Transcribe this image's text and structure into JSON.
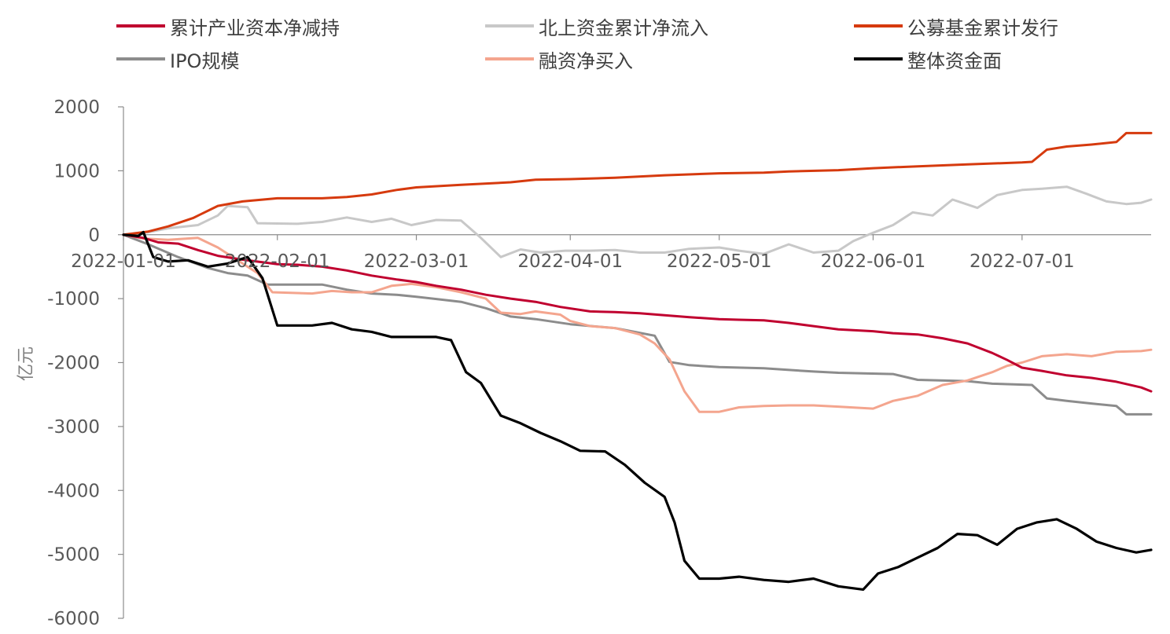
{
  "chart_data": {
    "type": "line",
    "ylabel": "亿元",
    "ylim": [
      -6000,
      2000
    ],
    "yticks": [
      2000,
      1000,
      0,
      -1000,
      -2000,
      -3000,
      -4000,
      -5000,
      -6000
    ],
    "ytick_labels": [
      "2000",
      "1000",
      "0",
      "-1000",
      "-2000",
      "-3000",
      "-4000",
      "-5000",
      "-6000"
    ],
    "x_range": [
      "2022-01-01",
      "2022-07-27"
    ],
    "xticks": [
      "2022-01-01",
      "2022-02-01",
      "2022-03-01",
      "2022-04-01",
      "2022-05-01",
      "2022-06-01",
      "2022-07-01"
    ],
    "xtick_labels": [
      "2022-01-01",
      "2022-02-01",
      "2022-03-01",
      "2022-04-01",
      "2022-05-01",
      "2022-06-01",
      "2022-07-01"
    ],
    "grid": false,
    "legend_position": "top",
    "series": [
      {
        "name": "累计产业资本净减持",
        "color": "#C0002F",
        "points": [
          [
            "2022-01-01",
            0
          ],
          [
            "2022-01-05",
            -50
          ],
          [
            "2022-01-08",
            -120
          ],
          [
            "2022-01-12",
            -140
          ],
          [
            "2022-01-16",
            -240
          ],
          [
            "2022-01-20",
            -330
          ],
          [
            "2022-01-25",
            -390
          ],
          [
            "2022-02-01",
            -460
          ],
          [
            "2022-02-05",
            -470
          ],
          [
            "2022-02-10",
            -500
          ],
          [
            "2022-02-15",
            -560
          ],
          [
            "2022-02-20",
            -640
          ],
          [
            "2022-02-25",
            -700
          ],
          [
            "2022-03-01",
            -740
          ],
          [
            "2022-03-05",
            -800
          ],
          [
            "2022-03-10",
            -860
          ],
          [
            "2022-03-15",
            -940
          ],
          [
            "2022-03-20",
            -1000
          ],
          [
            "2022-03-25",
            -1050
          ],
          [
            "2022-03-30",
            -1130
          ],
          [
            "2022-04-05",
            -1200
          ],
          [
            "2022-04-10",
            -1210
          ],
          [
            "2022-04-15",
            -1230
          ],
          [
            "2022-04-20",
            -1260
          ],
          [
            "2022-04-25",
            -1290
          ],
          [
            "2022-05-01",
            -1320
          ],
          [
            "2022-05-05",
            -1330
          ],
          [
            "2022-05-10",
            -1340
          ],
          [
            "2022-05-15",
            -1380
          ],
          [
            "2022-05-20",
            -1430
          ],
          [
            "2022-05-25",
            -1480
          ],
          [
            "2022-06-01",
            -1510
          ],
          [
            "2022-06-05",
            -1540
          ],
          [
            "2022-06-10",
            -1560
          ],
          [
            "2022-06-15",
            -1620
          ],
          [
            "2022-06-20",
            -1700
          ],
          [
            "2022-06-25",
            -1850
          ],
          [
            "2022-06-28",
            -1960
          ],
          [
            "2022-07-01",
            -2080
          ],
          [
            "2022-07-05",
            -2130
          ],
          [
            "2022-07-10",
            -2200
          ],
          [
            "2022-07-15",
            -2240
          ],
          [
            "2022-07-20",
            -2300
          ],
          [
            "2022-07-25",
            -2390
          ],
          [
            "2022-07-27",
            -2450
          ]
        ]
      },
      {
        "name": "北上资金累计净流入",
        "color": "#C8C8C8",
        "points": [
          [
            "2022-01-01",
            0
          ],
          [
            "2022-01-06",
            40
          ],
          [
            "2022-01-10",
            100
          ],
          [
            "2022-01-16",
            150
          ],
          [
            "2022-01-20",
            300
          ],
          [
            "2022-01-22",
            450
          ],
          [
            "2022-01-26",
            430
          ],
          [
            "2022-01-28",
            180
          ],
          [
            "2022-02-05",
            170
          ],
          [
            "2022-02-10",
            200
          ],
          [
            "2022-02-15",
            270
          ],
          [
            "2022-02-20",
            200
          ],
          [
            "2022-02-24",
            250
          ],
          [
            "2022-02-28",
            150
          ],
          [
            "2022-03-05",
            230
          ],
          [
            "2022-03-10",
            220
          ],
          [
            "2022-03-14",
            -50
          ],
          [
            "2022-03-18",
            -350
          ],
          [
            "2022-03-22",
            -230
          ],
          [
            "2022-03-26",
            -280
          ],
          [
            "2022-03-31",
            -250
          ],
          [
            "2022-04-05",
            -250
          ],
          [
            "2022-04-10",
            -240
          ],
          [
            "2022-04-15",
            -280
          ],
          [
            "2022-04-20",
            -280
          ],
          [
            "2022-04-25",
            -220
          ],
          [
            "2022-05-01",
            -200
          ],
          [
            "2022-05-05",
            -250
          ],
          [
            "2022-05-10",
            -300
          ],
          [
            "2022-05-15",
            -150
          ],
          [
            "2022-05-20",
            -280
          ],
          [
            "2022-05-25",
            -250
          ],
          [
            "2022-05-28",
            -100
          ],
          [
            "2022-06-01",
            30
          ],
          [
            "2022-06-05",
            150
          ],
          [
            "2022-06-09",
            350
          ],
          [
            "2022-06-13",
            300
          ],
          [
            "2022-06-17",
            550
          ],
          [
            "2022-06-22",
            420
          ],
          [
            "2022-06-26",
            620
          ],
          [
            "2022-07-01",
            700
          ],
          [
            "2022-07-05",
            720
          ],
          [
            "2022-07-10",
            750
          ],
          [
            "2022-07-14",
            640
          ],
          [
            "2022-07-18",
            520
          ],
          [
            "2022-07-22",
            480
          ],
          [
            "2022-07-25",
            500
          ],
          [
            "2022-07-27",
            550
          ]
        ]
      },
      {
        "name": "公募基金累计发行",
        "color": "#D63A0E",
        "points": [
          [
            "2022-01-01",
            0
          ],
          [
            "2022-01-06",
            50
          ],
          [
            "2022-01-10",
            130
          ],
          [
            "2022-01-15",
            260
          ],
          [
            "2022-01-20",
            450
          ],
          [
            "2022-01-25",
            520
          ],
          [
            "2022-02-01",
            570
          ],
          [
            "2022-02-10",
            570
          ],
          [
            "2022-02-15",
            590
          ],
          [
            "2022-02-20",
            630
          ],
          [
            "2022-02-25",
            700
          ],
          [
            "2022-03-01",
            740
          ],
          [
            "2022-03-10",
            780
          ],
          [
            "2022-03-20",
            820
          ],
          [
            "2022-03-25",
            860
          ],
          [
            "2022-04-01",
            870
          ],
          [
            "2022-04-10",
            890
          ],
          [
            "2022-04-20",
            930
          ],
          [
            "2022-05-01",
            960
          ],
          [
            "2022-05-10",
            970
          ],
          [
            "2022-05-15",
            990
          ],
          [
            "2022-05-25",
            1010
          ],
          [
            "2022-06-01",
            1040
          ],
          [
            "2022-06-10",
            1070
          ],
          [
            "2022-06-20",
            1100
          ],
          [
            "2022-07-01",
            1130
          ],
          [
            "2022-07-03",
            1140
          ],
          [
            "2022-07-06",
            1330
          ],
          [
            "2022-07-10",
            1380
          ],
          [
            "2022-07-15",
            1410
          ],
          [
            "2022-07-20",
            1450
          ],
          [
            "2022-07-22",
            1590
          ],
          [
            "2022-07-27",
            1590
          ]
        ]
      },
      {
        "name": "IPO规模",
        "color": "#8C8C8C",
        "points": [
          [
            "2022-01-01",
            0
          ],
          [
            "2022-01-06",
            -150
          ],
          [
            "2022-01-12",
            -350
          ],
          [
            "2022-01-18",
            -520
          ],
          [
            "2022-01-22",
            -600
          ],
          [
            "2022-01-26",
            -640
          ],
          [
            "2022-01-30",
            -780
          ],
          [
            "2022-02-10",
            -780
          ],
          [
            "2022-02-15",
            -860
          ],
          [
            "2022-02-20",
            -920
          ],
          [
            "2022-02-25",
            -940
          ],
          [
            "2022-03-01",
            -970
          ],
          [
            "2022-03-10",
            -1050
          ],
          [
            "2022-03-15",
            -1150
          ],
          [
            "2022-03-20",
            -1280
          ],
          [
            "2022-03-25",
            -1320
          ],
          [
            "2022-04-01",
            -1400
          ],
          [
            "2022-04-10",
            -1460
          ],
          [
            "2022-04-18",
            -1580
          ],
          [
            "2022-04-21",
            -1990
          ],
          [
            "2022-04-25",
            -2040
          ],
          [
            "2022-05-01",
            -2070
          ],
          [
            "2022-05-10",
            -2090
          ],
          [
            "2022-05-20",
            -2140
          ],
          [
            "2022-05-25",
            -2160
          ],
          [
            "2022-06-05",
            -2180
          ],
          [
            "2022-06-10",
            -2270
          ],
          [
            "2022-06-20",
            -2290
          ],
          [
            "2022-06-25",
            -2330
          ],
          [
            "2022-07-03",
            -2350
          ],
          [
            "2022-07-06",
            -2560
          ],
          [
            "2022-07-10",
            -2600
          ],
          [
            "2022-07-15",
            -2640
          ],
          [
            "2022-07-20",
            -2680
          ],
          [
            "2022-07-22",
            -2810
          ],
          [
            "2022-07-27",
            -2810
          ]
        ]
      },
      {
        "name": "融资净买入",
        "color": "#F4A58E",
        "points": [
          [
            "2022-01-01",
            0
          ],
          [
            "2022-01-05",
            -60
          ],
          [
            "2022-01-10",
            -80
          ],
          [
            "2022-01-16",
            -50
          ],
          [
            "2022-01-20",
            -200
          ],
          [
            "2022-01-24",
            -400
          ],
          [
            "2022-01-28",
            -600
          ],
          [
            "2022-01-31",
            -900
          ],
          [
            "2022-02-08",
            -920
          ],
          [
            "2022-02-12",
            -880
          ],
          [
            "2022-02-16",
            -900
          ],
          [
            "2022-02-20",
            -900
          ],
          [
            "2022-02-24",
            -800
          ],
          [
            "2022-02-28",
            -770
          ],
          [
            "2022-03-05",
            -820
          ],
          [
            "2022-03-10",
            -900
          ],
          [
            "2022-03-15",
            -1000
          ],
          [
            "2022-03-18",
            -1220
          ],
          [
            "2022-03-22",
            -1240
          ],
          [
            "2022-03-25",
            -1200
          ],
          [
            "2022-03-30",
            -1250
          ],
          [
            "2022-04-01",
            -1350
          ],
          [
            "2022-04-05",
            -1430
          ],
          [
            "2022-04-10",
            -1460
          ],
          [
            "2022-04-15",
            -1560
          ],
          [
            "2022-04-18",
            -1700
          ],
          [
            "2022-04-21",
            -1950
          ],
          [
            "2022-04-24",
            -2450
          ],
          [
            "2022-04-27",
            -2770
          ],
          [
            "2022-05-01",
            -2770
          ],
          [
            "2022-05-05",
            -2700
          ],
          [
            "2022-05-10",
            -2680
          ],
          [
            "2022-05-15",
            -2670
          ],
          [
            "2022-05-20",
            -2670
          ],
          [
            "2022-05-25",
            -2690
          ],
          [
            "2022-06-01",
            -2720
          ],
          [
            "2022-06-05",
            -2600
          ],
          [
            "2022-06-10",
            -2520
          ],
          [
            "2022-06-15",
            -2350
          ],
          [
            "2022-06-20",
            -2280
          ],
          [
            "2022-06-25",
            -2150
          ],
          [
            "2022-06-28",
            -2050
          ],
          [
            "2022-07-01",
            -2000
          ],
          [
            "2022-07-05",
            -1900
          ],
          [
            "2022-07-10",
            -1870
          ],
          [
            "2022-07-15",
            -1900
          ],
          [
            "2022-07-20",
            -1830
          ],
          [
            "2022-07-25",
            -1820
          ],
          [
            "2022-07-27",
            -1800
          ]
        ]
      },
      {
        "name": "整体资金面",
        "color": "#000000",
        "points": [
          [
            "2022-01-01",
            0
          ],
          [
            "2022-01-04",
            -20
          ],
          [
            "2022-01-05",
            40
          ],
          [
            "2022-01-07",
            -350
          ],
          [
            "2022-01-10",
            -420
          ],
          [
            "2022-01-14",
            -400
          ],
          [
            "2022-01-18",
            -500
          ],
          [
            "2022-01-22",
            -450
          ],
          [
            "2022-01-26",
            -350
          ],
          [
            "2022-01-29",
            -680
          ],
          [
            "2022-02-01",
            -1420
          ],
          [
            "2022-02-08",
            -1420
          ],
          [
            "2022-02-12",
            -1380
          ],
          [
            "2022-02-16",
            -1480
          ],
          [
            "2022-02-20",
            -1520
          ],
          [
            "2022-02-24",
            -1600
          ],
          [
            "2022-02-28",
            -1600
          ],
          [
            "2022-03-05",
            -1600
          ],
          [
            "2022-03-08",
            -1650
          ],
          [
            "2022-03-11",
            -2150
          ],
          [
            "2022-03-14",
            -2320
          ],
          [
            "2022-03-18",
            -2830
          ],
          [
            "2022-03-22",
            -2950
          ],
          [
            "2022-03-26",
            -3100
          ],
          [
            "2022-03-30",
            -3230
          ],
          [
            "2022-04-03",
            -3380
          ],
          [
            "2022-04-08",
            -3390
          ],
          [
            "2022-04-12",
            -3600
          ],
          [
            "2022-04-16",
            -3880
          ],
          [
            "2022-04-20",
            -4100
          ],
          [
            "2022-04-22",
            -4500
          ],
          [
            "2022-04-24",
            -5100
          ],
          [
            "2022-04-27",
            -5380
          ],
          [
            "2022-05-01",
            -5380
          ],
          [
            "2022-05-05",
            -5350
          ],
          [
            "2022-05-10",
            -5400
          ],
          [
            "2022-05-15",
            -5430
          ],
          [
            "2022-05-20",
            -5380
          ],
          [
            "2022-05-25",
            -5500
          ],
          [
            "2022-05-30",
            -5550
          ],
          [
            "2022-06-02",
            -5300
          ],
          [
            "2022-06-06",
            -5200
          ],
          [
            "2022-06-10",
            -5050
          ],
          [
            "2022-06-14",
            -4900
          ],
          [
            "2022-06-18",
            -4680
          ],
          [
            "2022-06-22",
            -4700
          ],
          [
            "2022-06-26",
            -4850
          ],
          [
            "2022-06-30",
            -4600
          ],
          [
            "2022-07-04",
            -4500
          ],
          [
            "2022-07-08",
            -4450
          ],
          [
            "2022-07-12",
            -4600
          ],
          [
            "2022-07-16",
            -4800
          ],
          [
            "2022-07-20",
            -4900
          ],
          [
            "2022-07-24",
            -4970
          ],
          [
            "2022-07-27",
            -4930
          ]
        ]
      }
    ]
  }
}
